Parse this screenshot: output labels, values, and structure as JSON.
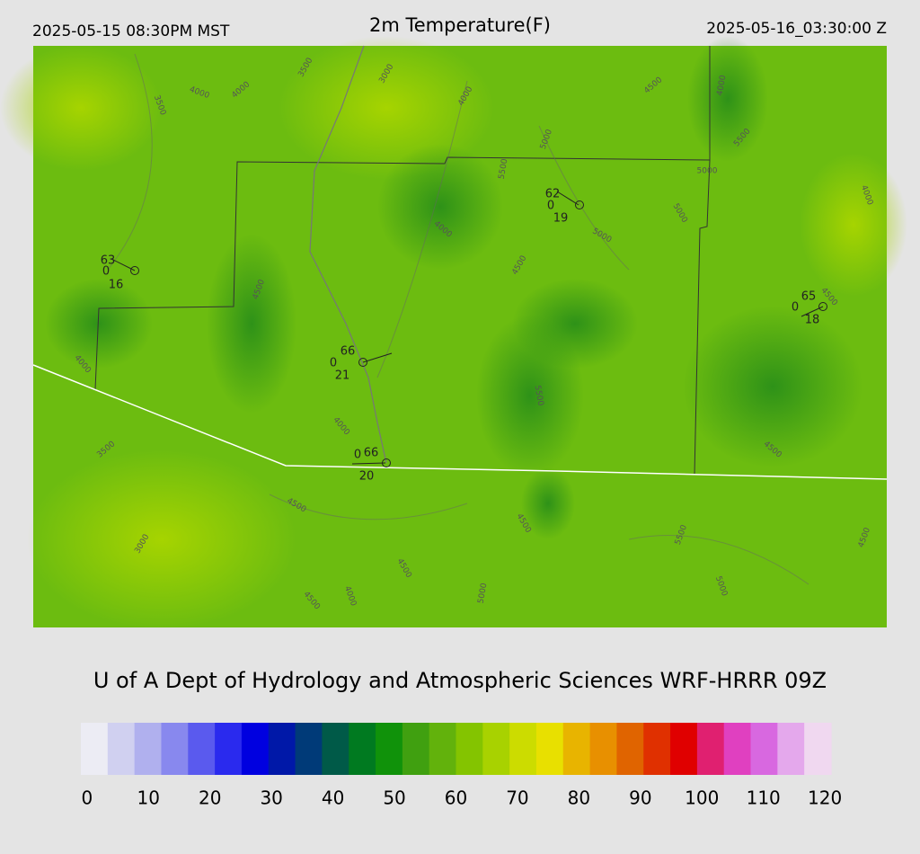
{
  "header": {
    "left": "2025-05-15 08:30PM MST",
    "title": "2m Temperature(F)",
    "right": "2025-05-16_03:30:00 Z"
  },
  "stations": [
    {
      "temp": 63,
      "dew": 0,
      "wind": 16
    },
    {
      "temp": 62,
      "dew": 0,
      "wind": 19
    },
    {
      "temp": 65,
      "dew": 0,
      "wind": 18
    },
    {
      "temp": 66,
      "dew": 0,
      "wind": 21
    },
    {
      "temp": 66,
      "dew": 0,
      "wind": 20
    }
  ],
  "contours": [
    3500,
    4000,
    4000,
    3500,
    3000,
    4000,
    4500,
    4000,
    5000,
    5500,
    5000,
    5500,
    5000,
    5000,
    4000,
    4500,
    4500,
    4500,
    4000,
    5500,
    4500,
    4000,
    3500,
    4500,
    4500,
    5500,
    3000,
    4500,
    4000,
    4500,
    5000,
    5000,
    4500,
    4000
  ],
  "credit": "U of A Dept of Hydrology and Atmospheric Sciences WRF-HRRR 09Z",
  "colorbar": {
    "lim": [
      -1,
      121
    ],
    "ticks": [
      0,
      10,
      20,
      30,
      40,
      50,
      60,
      70,
      80,
      90,
      100,
      110,
      120
    ],
    "colors": [
      "#ececf4",
      "#d0d0f0",
      "#b0b0ee",
      "#8888ee",
      "#5a5aee",
      "#2a2aee",
      "#0000e0",
      "#0018a8",
      "#003a78",
      "#005a48",
      "#007a20",
      "#10920a",
      "#40a010",
      "#62b20c",
      "#84c400",
      "#a8d200",
      "#ccdc00",
      "#e8e000",
      "#e8b400",
      "#e89000",
      "#e06400",
      "#e03000",
      "#e00000",
      "#e02070",
      "#e040c0",
      "#d868e0",
      "#e4a8ec",
      "#f0d8f0"
    ]
  }
}
